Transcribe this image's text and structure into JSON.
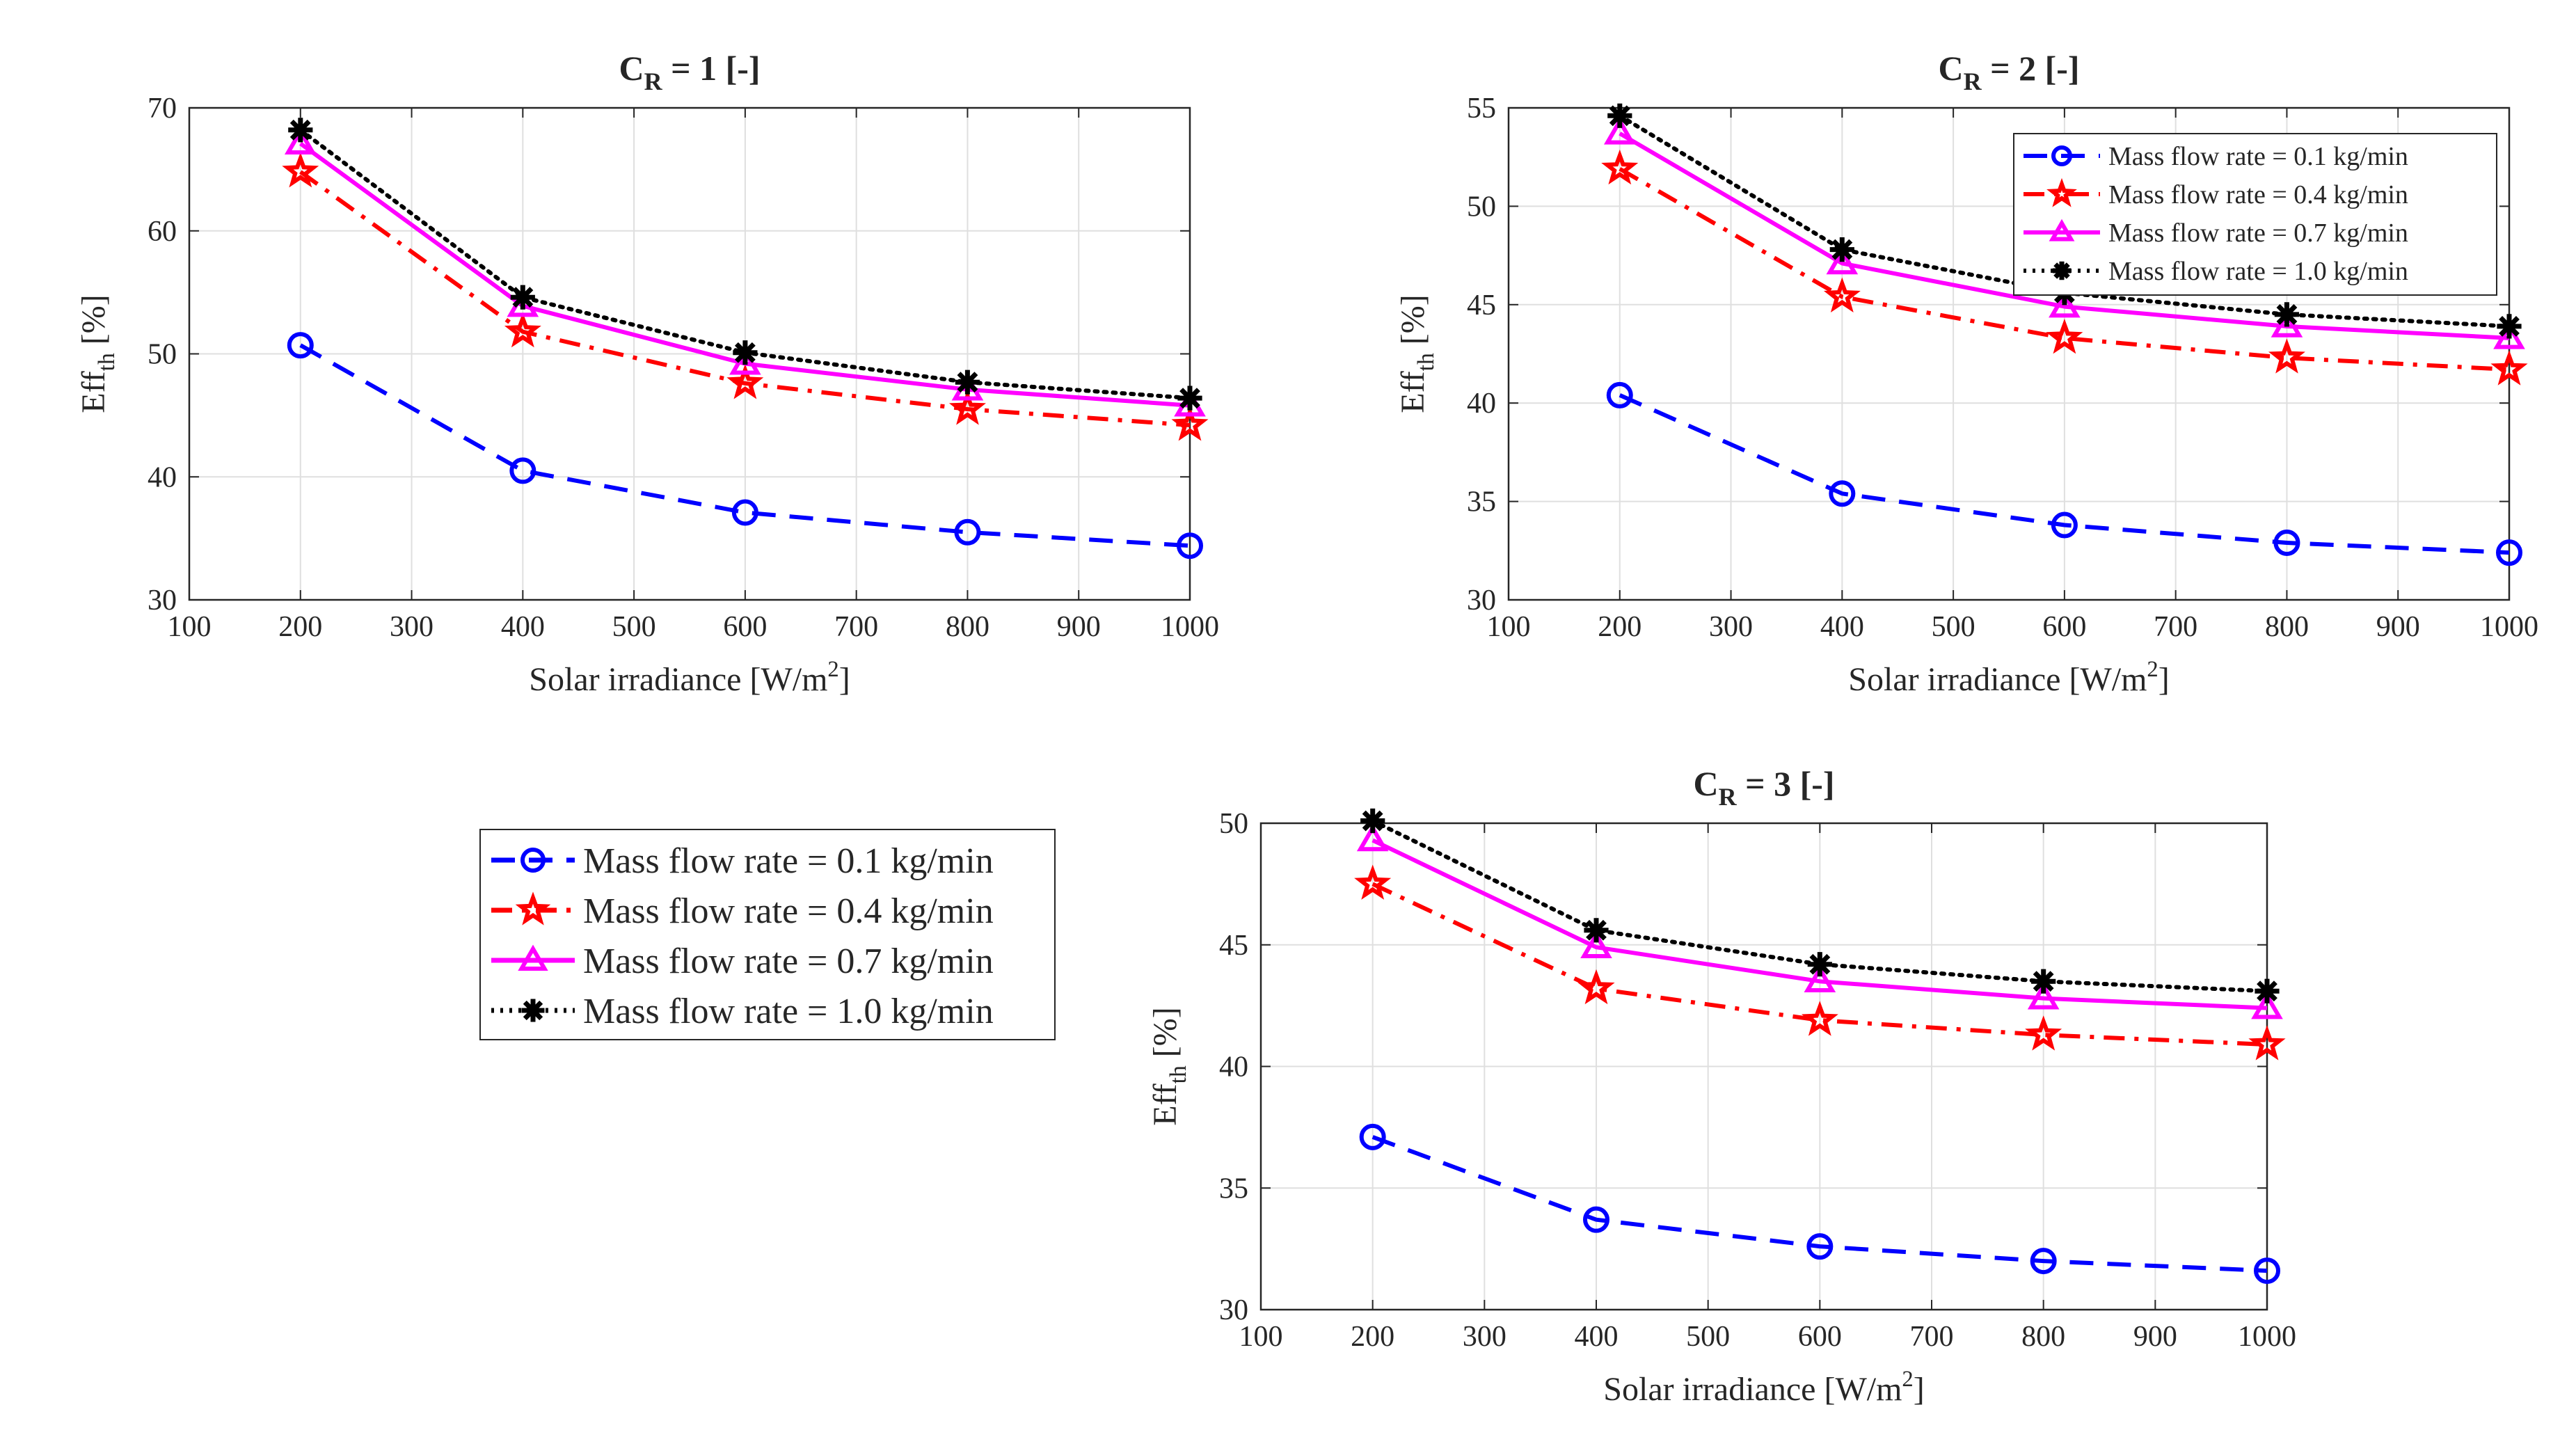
{
  "chart_data": [
    {
      "type": "line",
      "title_main": "C",
      "title_sub": "R",
      "title_rest": " = 1 [-]",
      "xlabel": "Solar irradiance [W/m",
      "xlabel_sup": "2",
      "xlabel_end": "]",
      "ylabel": "Eff",
      "ylabel_sub": "th",
      "ylabel_end": " [%]",
      "xlim": [
        100,
        1000
      ],
      "ylim": [
        30,
        70
      ],
      "xticks": [
        100,
        200,
        300,
        400,
        500,
        600,
        700,
        800,
        900,
        1000
      ],
      "yticks": [
        30,
        40,
        50,
        60,
        70
      ],
      "grid": true,
      "x": [
        200,
        400,
        600,
        800,
        1000
      ],
      "series": [
        {
          "name": "Mass flow rate = 0.1 kg/min",
          "values": [
            50.7,
            40.5,
            37.1,
            35.5,
            34.4
          ],
          "color": "#0000ff",
          "marker": "circle",
          "dash": "dashed"
        },
        {
          "name": "Mass flow rate = 0.4 kg/min",
          "values": [
            64.8,
            51.8,
            47.6,
            45.5,
            44.2
          ],
          "color": "#ff0000",
          "marker": "star",
          "dash": "dashdot"
        },
        {
          "name": "Mass flow rate = 0.7 kg/min",
          "values": [
            67.1,
            53.9,
            49.2,
            47.1,
            45.8
          ],
          "color": "#ff00ff",
          "marker": "triangle",
          "dash": "solid"
        },
        {
          "name": "Mass flow rate = 1.0 kg/min",
          "values": [
            68.2,
            54.6,
            50.1,
            47.7,
            46.4
          ],
          "color": "#000000",
          "marker": "asterisk",
          "dash": "dotted"
        }
      ]
    },
    {
      "type": "line",
      "title_main": "C",
      "title_sub": "R",
      "title_rest": " = 2 [-]",
      "xlabel": "Solar irradiance [W/m",
      "xlabel_sup": "2",
      "xlabel_end": "]",
      "ylabel": "Eff",
      "ylabel_sub": "th",
      "ylabel_end": " [%]",
      "xlim": [
        100,
        1000
      ],
      "ylim": [
        30,
        55
      ],
      "xticks": [
        100,
        200,
        300,
        400,
        500,
        600,
        700,
        800,
        900,
        1000
      ],
      "yticks": [
        30,
        35,
        40,
        45,
        50,
        55
      ],
      "grid": true,
      "legend": "top-right",
      "x": [
        200,
        400,
        600,
        800,
        1000
      ],
      "series": [
        {
          "name": "Mass flow rate = 0.1 kg/min",
          "values": [
            40.4,
            35.4,
            33.8,
            32.9,
            32.4
          ],
          "color": "#0000ff",
          "marker": "circle",
          "dash": "dashed"
        },
        {
          "name": "Mass flow rate = 0.4 kg/min",
          "values": [
            51.9,
            45.4,
            43.3,
            42.3,
            41.7
          ],
          "color": "#ff0000",
          "marker": "star",
          "dash": "dashdot"
        },
        {
          "name": "Mass flow rate = 0.7 kg/min",
          "values": [
            53.7,
            47.1,
            44.9,
            43.9,
            43.3
          ],
          "color": "#ff00ff",
          "marker": "triangle",
          "dash": "solid"
        },
        {
          "name": "Mass flow rate = 1.0 kg/min",
          "values": [
            54.6,
            47.8,
            45.6,
            44.5,
            43.9
          ],
          "color": "#000000",
          "marker": "asterisk",
          "dash": "dotted"
        }
      ]
    },
    {
      "type": "line",
      "title_main": "C",
      "title_sub": "R",
      "title_rest": " = 3 [-]",
      "xlabel": "Solar irradiance [W/m",
      "xlabel_sup": "2",
      "xlabel_end": "]",
      "ylabel": "Eff",
      "ylabel_sub": "th",
      "ylabel_end": " [%]",
      "xlim": [
        100,
        1000
      ],
      "ylim": [
        30,
        50
      ],
      "xticks": [
        100,
        200,
        300,
        400,
        500,
        600,
        700,
        800,
        900,
        1000
      ],
      "yticks": [
        30,
        35,
        40,
        45,
        50
      ],
      "grid": true,
      "x": [
        200,
        400,
        600,
        800,
        1000
      ],
      "series": [
        {
          "name": "Mass flow rate = 0.1 kg/min",
          "values": [
            37.1,
            33.7,
            32.6,
            32.0,
            31.6
          ],
          "color": "#0000ff",
          "marker": "circle",
          "dash": "dashed"
        },
        {
          "name": "Mass flow rate = 0.4 kg/min",
          "values": [
            47.5,
            43.2,
            41.9,
            41.3,
            40.9
          ],
          "color": "#ff0000",
          "marker": "star",
          "dash": "dashdot"
        },
        {
          "name": "Mass flow rate = 0.7 kg/min",
          "values": [
            49.3,
            44.9,
            43.5,
            42.8,
            42.4
          ],
          "color": "#ff00ff",
          "marker": "triangle",
          "dash": "solid"
        },
        {
          "name": "Mass flow rate = 1.0 kg/min",
          "values": [
            50.1,
            45.6,
            44.2,
            43.5,
            43.1
          ],
          "color": "#000000",
          "marker": "asterisk",
          "dash": "dotted"
        }
      ]
    }
  ],
  "shared_legend": {
    "items": [
      "Mass flow rate = 0.1 kg/min",
      "Mass flow rate = 0.4 kg/min",
      "Mass flow rate = 0.7 kg/min",
      "Mass flow rate = 1.0 kg/min"
    ]
  }
}
